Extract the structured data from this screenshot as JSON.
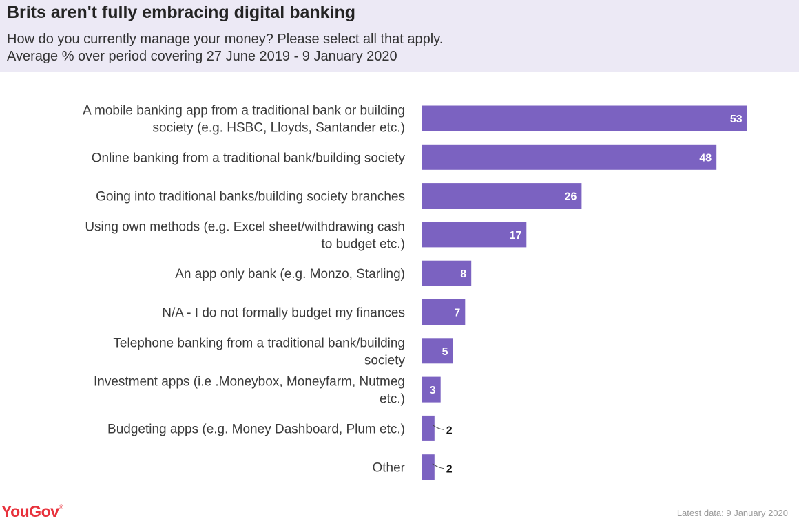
{
  "header": {
    "title": "Brits aren't fully embracing digital banking",
    "subtitle_line1": "How do you currently manage your money? Please select all that apply.",
    "subtitle_line2": "Average % over period covering 27 June 2019 - 9 January 2020"
  },
  "colors": {
    "bar": "#7b62c1",
    "header_bg": "#ece9f5",
    "logo": "#e8323c"
  },
  "chart_data": {
    "type": "bar",
    "orientation": "horizontal",
    "categories": [
      [
        "A mobile banking app from a traditional bank or building",
        "society (e.g. HSBC, Lloyds, Santander etc.)"
      ],
      [
        "Online banking from a traditional bank/building society"
      ],
      [
        "Going into traditional banks/building society branches"
      ],
      [
        "Using own methods (e.g. Excel sheet/withdrawing cash",
        "to budget etc.)"
      ],
      [
        "An app only bank (e.g. Monzo, Starling)"
      ],
      [
        "N/A - I do not formally budget my finances"
      ],
      [
        "Telephone banking from a traditional bank/building",
        "society"
      ],
      [
        "Investment apps (i.e .Moneybox, Moneyfarm, Nutmeg",
        "etc.)"
      ],
      [
        "Budgeting apps (e.g. Money Dashboard, Plum etc.)"
      ],
      [
        "Other"
      ]
    ],
    "values": [
      53,
      48,
      26,
      17,
      8,
      7,
      5,
      3,
      2,
      2
    ],
    "xlim": [
      0,
      60
    ],
    "grid": false,
    "legend": "none"
  },
  "footer": {
    "brand": "YouGov",
    "brand_mark": "®",
    "latest": "Latest data: 9 January 2020"
  }
}
